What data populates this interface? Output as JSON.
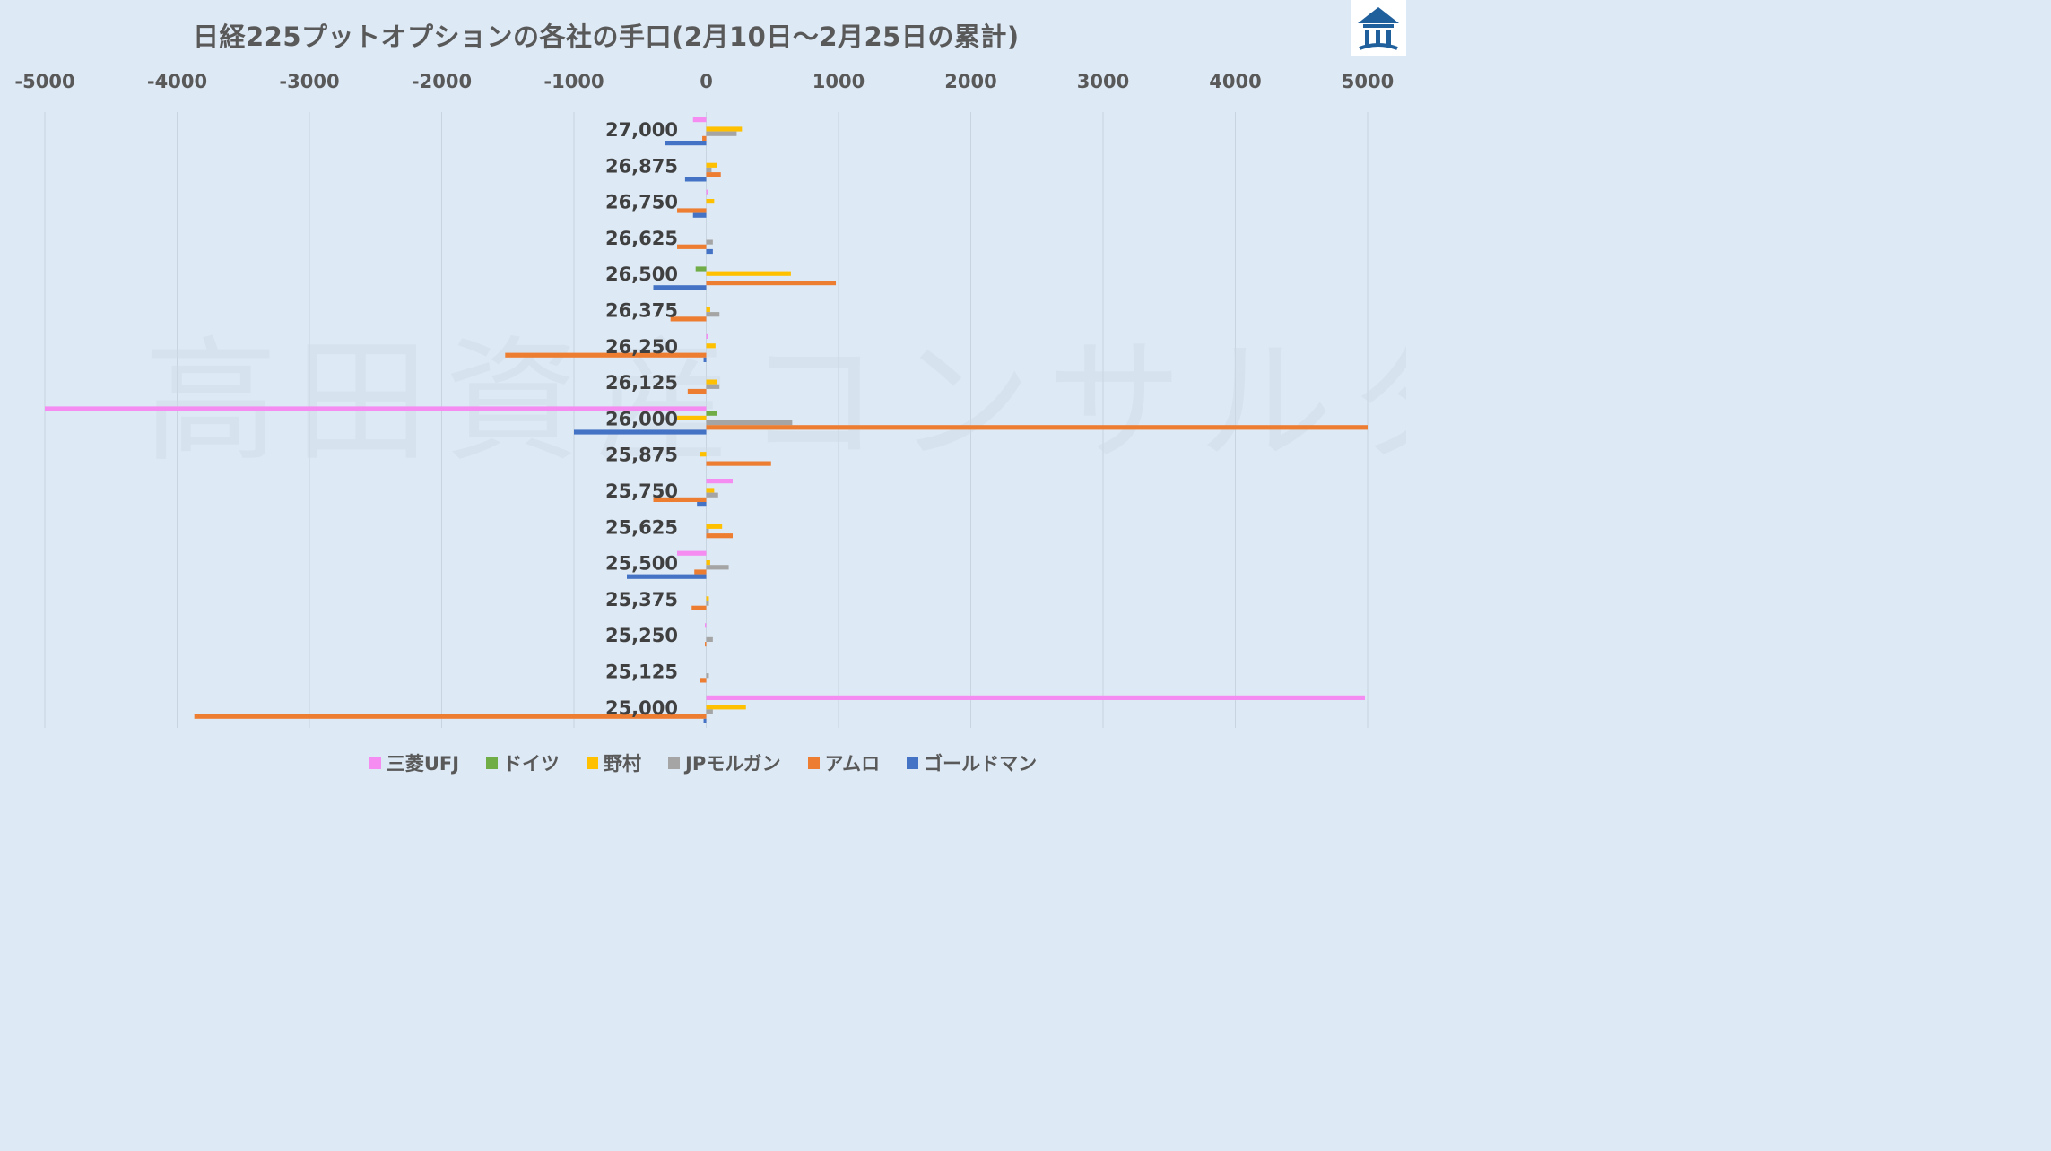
{
  "title": "日経225プットオプションの各社の手口(2月10日～2月25日の累計)",
  "watermark": "高田資産コンサルタント",
  "logo_icon": "house-logo-icon",
  "colors": {
    "三菱UFJ": "#f48cf2",
    "ドイツ": "#70ad47",
    "野村": "#ffc000",
    "JPモルガン": "#a5a5a5",
    "アムロ": "#ed7d31",
    "ゴールドマン": "#4472c4",
    "grid": "#c8d4e0",
    "background": "#dde9f5"
  },
  "chart_data": {
    "type": "bar",
    "orientation": "horizontal",
    "title": "日経225プットオプションの各社の手口(2月10日～2月25日の累計)",
    "xlim": [
      -5000,
      5000
    ],
    "x_ticks": [
      "-5000",
      "-4000",
      "-3000",
      "-2000",
      "-1000",
      "0",
      "1000",
      "2000",
      "3000",
      "4000",
      "5000"
    ],
    "x_axis_position": "top",
    "grid": true,
    "legend_position": "bottom",
    "categories": [
      "27,000",
      "26,875",
      "26,750",
      "26,625",
      "26,500",
      "26,375",
      "26,250",
      "26,125",
      "26,000",
      "25,875",
      "25,750",
      "25,625",
      "25,500",
      "25,375",
      "25,250",
      "25,125",
      "25,000"
    ],
    "series": [
      {
        "name": "三菱UFJ",
        "values": [
          -100,
          0,
          10,
          0,
          0,
          0,
          10,
          0,
          -5000,
          0,
          200,
          0,
          -220,
          0,
          -10,
          0,
          4980
        ]
      },
      {
        "name": "ドイツ",
        "values": [
          0,
          0,
          0,
          0,
          -80,
          0,
          0,
          0,
          80,
          0,
          0,
          0,
          0,
          0,
          0,
          0,
          0
        ]
      },
      {
        "name": "野村",
        "values": [
          270,
          80,
          60,
          0,
          640,
          30,
          70,
          80,
          -220,
          -50,
          60,
          120,
          30,
          20,
          0,
          0,
          300
        ]
      },
      {
        "name": "JPモルガン",
        "values": [
          230,
          40,
          0,
          50,
          0,
          100,
          0,
          100,
          650,
          0,
          90,
          20,
          170,
          20,
          50,
          20,
          50
        ]
      },
      {
        "name": "アムロ",
        "values": [
          -30,
          110,
          -220,
          -220,
          980,
          -270,
          -1520,
          -140,
          5000,
          490,
          -400,
          200,
          -90,
          -110,
          -10,
          -50,
          -3870
        ]
      },
      {
        "name": "ゴールドマン",
        "values": [
          -310,
          -160,
          -100,
          50,
          -400,
          0,
          -20,
          0,
          -1000,
          0,
          -70,
          0,
          -600,
          0,
          0,
          0,
          -20
        ]
      }
    ]
  },
  "legend": [
    {
      "label": "三菱UFJ",
      "color": "#f48cf2"
    },
    {
      "label": "ドイツ",
      "color": "#70ad47"
    },
    {
      "label": "野村",
      "color": "#ffc000"
    },
    {
      "label": "JPモルガン",
      "color": "#a5a5a5"
    },
    {
      "label": "アムロ",
      "color": "#ed7d31"
    },
    {
      "label": "ゴールドマン",
      "color": "#4472c4"
    }
  ]
}
